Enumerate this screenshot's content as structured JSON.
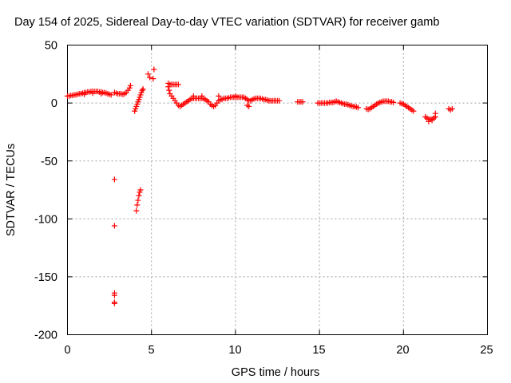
{
  "chart_data": {
    "type": "scatter",
    "title": "Day 154 of 2025, Sidereal Day-to-day VTEC variation (SDTVAR) for receiver gamb",
    "xlabel": "GPS time / hours",
    "ylabel": "SDTVAR / TECUs",
    "xlim": [
      0,
      25
    ],
    "ylim": [
      -200,
      50
    ],
    "xticks": [
      0,
      5,
      10,
      15,
      20,
      25
    ],
    "yticks": [
      -200,
      -150,
      -100,
      -50,
      0,
      50
    ],
    "xtick_labels": [
      "0",
      "5",
      "10",
      "15",
      "20",
      "25"
    ],
    "ytick_labels": [
      "-200",
      "-150",
      "-100",
      "-50",
      "0",
      "50"
    ],
    "grid": true,
    "legend": "none",
    "marker": "plus",
    "series_color": "#ff0000",
    "series": [
      {
        "name": "SDTVAR",
        "points": [
          [
            0.0,
            6
          ],
          [
            0.1,
            6
          ],
          [
            0.2,
            6.5
          ],
          [
            0.3,
            6.5
          ],
          [
            0.4,
            7
          ],
          [
            0.5,
            7
          ],
          [
            0.6,
            7.5
          ],
          [
            0.7,
            8
          ],
          [
            0.8,
            8
          ],
          [
            0.9,
            8.5
          ],
          [
            1.0,
            9
          ],
          [
            1.1,
            9
          ],
          [
            1.2,
            9.5
          ],
          [
            1.3,
            9.5
          ],
          [
            1.4,
            10
          ],
          [
            1.5,
            10
          ],
          [
            1.6,
            10
          ],
          [
            1.7,
            10
          ],
          [
            1.8,
            10
          ],
          [
            1.9,
            9.5
          ],
          [
            2.0,
            9.5
          ],
          [
            2.1,
            9
          ],
          [
            2.2,
            9
          ],
          [
            2.3,
            8.5
          ],
          [
            2.4,
            8
          ],
          [
            2.5,
            7.5
          ],
          [
            2.6,
            7
          ],
          [
            1.0,
            7.5
          ],
          [
            1.5,
            8.5
          ],
          [
            2.0,
            8
          ],
          [
            2.8,
            9
          ],
          [
            2.9,
            8.5
          ],
          [
            3.0,
            8
          ],
          [
            3.1,
            8
          ],
          [
            3.2,
            8
          ],
          [
            3.3,
            7.5
          ],
          [
            3.4,
            8
          ],
          [
            3.5,
            9
          ],
          [
            3.6,
            11
          ],
          [
            3.7,
            13
          ],
          [
            3.75,
            15
          ],
          [
            2.8,
            -66
          ],
          [
            2.8,
            -106
          ],
          [
            2.8,
            -164
          ],
          [
            2.8,
            -166
          ],
          [
            2.8,
            -172
          ],
          [
            2.8,
            -173
          ],
          [
            4.1,
            -93
          ],
          [
            4.15,
            -88
          ],
          [
            4.2,
            -84
          ],
          [
            4.25,
            -80
          ],
          [
            4.3,
            -77
          ],
          [
            4.35,
            -75
          ],
          [
            4.0,
            -7
          ],
          [
            4.05,
            -5
          ],
          [
            4.1,
            -3
          ],
          [
            4.15,
            -1
          ],
          [
            4.2,
            1
          ],
          [
            4.25,
            3
          ],
          [
            4.3,
            5
          ],
          [
            4.35,
            7
          ],
          [
            4.4,
            9
          ],
          [
            4.45,
            11
          ],
          [
            4.5,
            12
          ],
          [
            4.8,
            25
          ],
          [
            4.9,
            22
          ],
          [
            5.1,
            21
          ],
          [
            5.15,
            29
          ],
          [
            6.0,
            17
          ],
          [
            6.1,
            16
          ],
          [
            6.2,
            16
          ],
          [
            6.3,
            16
          ],
          [
            6.4,
            16
          ],
          [
            6.5,
            16
          ],
          [
            6.6,
            16
          ],
          [
            6.0,
            14
          ],
          [
            6.05,
            11
          ],
          [
            6.1,
            8
          ],
          [
            6.2,
            6
          ],
          [
            6.3,
            4
          ],
          [
            6.4,
            2
          ],
          [
            6.5,
            0
          ],
          [
            6.6,
            -2
          ],
          [
            6.7,
            -3
          ],
          [
            6.8,
            -2
          ],
          [
            6.9,
            -1
          ],
          [
            7.0,
            0
          ],
          [
            7.1,
            1
          ],
          [
            7.2,
            2
          ],
          [
            7.3,
            3
          ],
          [
            7.4,
            4
          ],
          [
            7.5,
            4
          ],
          [
            7.6,
            4
          ],
          [
            7.7,
            4
          ],
          [
            7.8,
            4
          ],
          [
            7.9,
            4
          ],
          [
            8.0,
            4
          ],
          [
            8.1,
            4
          ],
          [
            8.2,
            3
          ],
          [
            8.3,
            2
          ],
          [
            8.4,
            1
          ],
          [
            8.5,
            -1
          ],
          [
            8.6,
            -2
          ],
          [
            8.7,
            -3
          ],
          [
            8.8,
            -2
          ],
          [
            8.9,
            0
          ],
          [
            9.0,
            2
          ],
          [
            9.1,
            3
          ],
          [
            9.2,
            3
          ],
          [
            9.3,
            4
          ],
          [
            9.4,
            4
          ],
          [
            9.5,
            4
          ],
          [
            9.6,
            4.5
          ],
          [
            9.7,
            5
          ],
          [
            9.8,
            5
          ],
          [
            9.9,
            5
          ],
          [
            10.0,
            5
          ],
          [
            10.1,
            5
          ],
          [
            10.2,
            5
          ],
          [
            10.3,
            5
          ],
          [
            10.4,
            5
          ],
          [
            10.5,
            5
          ],
          [
            10.6,
            4
          ],
          [
            10.7,
            3
          ],
          [
            10.8,
            2
          ],
          [
            10.9,
            2
          ],
          [
            11.0,
            3
          ],
          [
            11.1,
            3.5
          ],
          [
            11.2,
            4
          ],
          [
            11.3,
            4
          ],
          [
            11.4,
            4
          ],
          [
            11.5,
            4
          ],
          [
            11.6,
            3.5
          ],
          [
            11.7,
            3
          ],
          [
            7.5,
            6
          ],
          [
            8.0,
            6
          ],
          [
            9.0,
            6
          ],
          [
            10.0,
            6
          ],
          [
            10.7,
            -2
          ],
          [
            10.8,
            -3
          ],
          [
            11.8,
            3
          ],
          [
            11.9,
            2.5
          ],
          [
            12.0,
            2
          ],
          [
            12.1,
            2
          ],
          [
            12.2,
            2
          ],
          [
            12.3,
            2
          ],
          [
            12.4,
            2
          ],
          [
            12.5,
            2
          ],
          [
            12.6,
            2
          ],
          [
            13.7,
            1
          ],
          [
            13.8,
            1
          ],
          [
            13.9,
            1
          ],
          [
            14.0,
            1
          ],
          [
            14.9,
            0
          ],
          [
            15.0,
            0
          ],
          [
            15.1,
            0
          ],
          [
            15.2,
            0
          ],
          [
            15.3,
            0
          ],
          [
            15.4,
            0
          ],
          [
            15.5,
            0
          ],
          [
            15.6,
            0.5
          ],
          [
            15.7,
            0.5
          ],
          [
            15.8,
            0.5
          ],
          [
            15.9,
            1
          ],
          [
            16.0,
            1.5
          ],
          [
            16.1,
            1
          ],
          [
            16.2,
            0.5
          ],
          [
            16.3,
            0
          ],
          [
            16.4,
            -0.5
          ],
          [
            16.5,
            -1
          ],
          [
            16.6,
            -1
          ],
          [
            16.7,
            -1.5
          ],
          [
            16.8,
            -2
          ],
          [
            16.9,
            -2.5
          ],
          [
            17.0,
            -3
          ],
          [
            17.1,
            -3
          ],
          [
            17.2,
            -3.5
          ],
          [
            17.3,
            -4
          ],
          [
            17.8,
            -5
          ],
          [
            17.9,
            -5.5
          ],
          [
            18.0,
            -5
          ],
          [
            18.1,
            -4
          ],
          [
            18.2,
            -3
          ],
          [
            18.3,
            -2
          ],
          [
            18.4,
            -1
          ],
          [
            18.5,
            0
          ],
          [
            18.6,
            0.5
          ],
          [
            18.7,
            1
          ],
          [
            18.8,
            1.5
          ],
          [
            18.9,
            1.5
          ],
          [
            19.0,
            1.5
          ],
          [
            19.1,
            1.5
          ],
          [
            19.2,
            1
          ],
          [
            19.3,
            1
          ],
          [
            19.4,
            0.5
          ],
          [
            19.8,
            0
          ],
          [
            19.9,
            -0.5
          ],
          [
            20.0,
            -1
          ],
          [
            20.1,
            -2
          ],
          [
            20.2,
            -3
          ],
          [
            20.3,
            -4
          ],
          [
            20.4,
            -5
          ],
          [
            20.5,
            -6
          ],
          [
            20.6,
            -7
          ],
          [
            21.3,
            -12
          ],
          [
            21.4,
            -13
          ],
          [
            21.5,
            -14
          ],
          [
            21.6,
            -14
          ],
          [
            21.7,
            -14
          ],
          [
            21.8,
            -13
          ],
          [
            21.9,
            -12
          ],
          [
            21.5,
            -16
          ],
          [
            21.7,
            -15
          ],
          [
            21.9,
            -9
          ],
          [
            22.7,
            -5
          ],
          [
            22.8,
            -6
          ],
          [
            22.9,
            -5
          ]
        ]
      }
    ]
  }
}
